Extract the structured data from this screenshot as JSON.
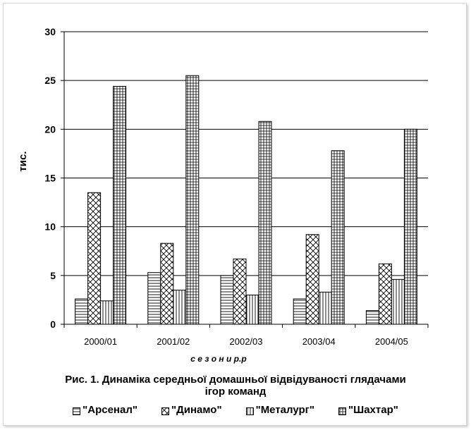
{
  "chart_data": {
    "type": "bar",
    "categories": [
      "2000/01",
      "2001/02",
      "2002/03",
      "2003/04",
      "2004/05"
    ],
    "series": [
      {
        "name": "\"Арсенал\"",
        "values": [
          2.6,
          5.3,
          5.0,
          2.6,
          1.4
        ],
        "pattern": "hlines"
      },
      {
        "name": "\"Динамо\"",
        "values": [
          13.5,
          8.3,
          6.7,
          9.2,
          6.2
        ],
        "pattern": "crosshatch"
      },
      {
        "name": "\"Металург\"",
        "values": [
          2.4,
          3.5,
          3.0,
          3.3,
          4.6
        ],
        "pattern": "vlines"
      },
      {
        "name": "\"Шахтар\"",
        "values": [
          24.4,
          25.5,
          20.8,
          17.8,
          20.0
        ],
        "pattern": "grid"
      }
    ],
    "title": "Рис. 1. Динаміка середньої домашньої відвідуваності глядачами ігор команд",
    "title_line1": "Рис. 1. Динаміка середньої домашньої відвідуваності глядачами",
    "title_line2": "ігор команд",
    "xlabel": "с е з о н и  р.р",
    "ylabel": "тис.",
    "ylim": [
      0,
      30
    ],
    "yticks": [
      "0",
      "5",
      "10",
      "15",
      "20",
      "25",
      "30"
    ],
    "grid": true,
    "legend_position": "bottom"
  }
}
